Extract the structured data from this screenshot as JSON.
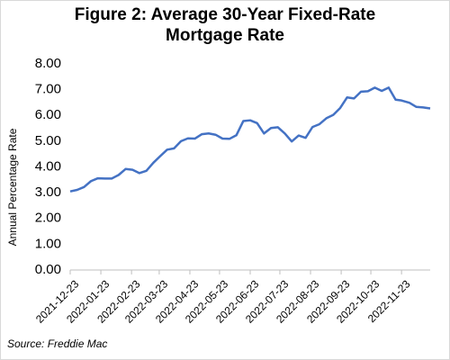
{
  "chart_data": {
    "type": "line",
    "title": "Figure 2: Average 30-Year Fixed-Rate Mortgage Rate",
    "y_label": "Annual Percentage Rate",
    "source": "Source: Freddie Mac",
    "color": "#4472c4",
    "x": [
      "2021-12-23",
      "2021-12-30",
      "2022-01-06",
      "2022-01-13",
      "2022-01-20",
      "2022-01-27",
      "2022-02-03",
      "2022-02-10",
      "2022-02-17",
      "2022-02-24",
      "2022-03-03",
      "2022-03-10",
      "2022-03-17",
      "2022-03-24",
      "2022-03-31",
      "2022-04-07",
      "2022-04-14",
      "2022-04-21",
      "2022-04-28",
      "2022-05-05",
      "2022-05-12",
      "2022-05-19",
      "2022-05-26",
      "2022-06-02",
      "2022-06-09",
      "2022-06-16",
      "2022-06-23",
      "2022-06-30",
      "2022-07-07",
      "2022-07-14",
      "2022-07-21",
      "2022-07-28",
      "2022-08-04",
      "2022-08-11",
      "2022-08-18",
      "2022-08-25",
      "2022-09-01",
      "2022-09-08",
      "2022-09-15",
      "2022-09-22",
      "2022-09-29",
      "2022-10-06",
      "2022-10-13",
      "2022-10-20",
      "2022-10-27",
      "2022-11-03",
      "2022-11-10",
      "2022-11-17",
      "2022-11-23",
      "2022-12-01",
      "2022-12-08",
      "2022-12-15",
      "2022-12-22"
    ],
    "values": [
      3.05,
      3.11,
      3.22,
      3.45,
      3.56,
      3.55,
      3.55,
      3.69,
      3.92,
      3.89,
      3.76,
      3.85,
      4.16,
      4.42,
      4.67,
      4.72,
      5.0,
      5.11,
      5.1,
      5.27,
      5.3,
      5.25,
      5.1,
      5.09,
      5.23,
      5.78,
      5.81,
      5.7,
      5.3,
      5.51,
      5.54,
      5.3,
      4.99,
      5.22,
      5.13,
      5.55,
      5.66,
      5.89,
      6.02,
      6.29,
      6.7,
      6.66,
      6.92,
      6.94,
      7.08,
      6.95,
      7.08,
      6.61,
      6.58,
      6.49,
      6.33,
      6.31,
      6.27
    ],
    "xlim": [
      "2021-12-23",
      "2022-12-22"
    ],
    "xticks": [
      "2021-12-23",
      "2022-01-23",
      "2022-02-23",
      "2022-03-23",
      "2022-04-23",
      "2022-05-23",
      "2022-06-23",
      "2022-07-23",
      "2022-08-23",
      "2022-09-23",
      "2022-10-23",
      "2022-11-23"
    ],
    "ylim": [
      0,
      8
    ],
    "yticks": [
      {
        "value": 0,
        "label": "0.00"
      },
      {
        "value": 1,
        "label": "1.00"
      },
      {
        "value": 2,
        "label": "2.00"
      },
      {
        "value": 3,
        "label": "3.00"
      },
      {
        "value": 4,
        "label": "4.00"
      },
      {
        "value": 5,
        "label": "5.00"
      },
      {
        "value": 6,
        "label": "6.00"
      },
      {
        "value": 7,
        "label": "7.00"
      },
      {
        "value": 8,
        "label": "8.00"
      }
    ],
    "grid": false
  }
}
